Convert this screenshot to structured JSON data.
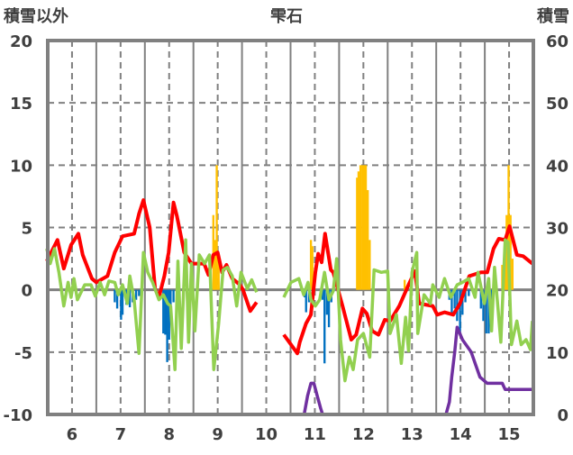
{
  "chart_data": {
    "type": "line",
    "title": "雫石",
    "ylabel_left": "積雪以外",
    "ylabel_right": "積雪",
    "xlim": [
      5.5,
      15.5
    ],
    "ylim_left": [
      -10,
      20
    ],
    "ylim_right": [
      0,
      60
    ],
    "x_ticks": [
      "6",
      "7",
      "8",
      "9",
      "10",
      "11",
      "12",
      "13",
      "14",
      "15"
    ],
    "y_ticks_left": [
      "20",
      "15",
      "10",
      "5",
      "0",
      "-5",
      "-10"
    ],
    "y_ticks_right": [
      "60",
      "50",
      "40",
      "30",
      "20",
      "10",
      "0"
    ],
    "grid": true,
    "colors": {
      "red": "#ff0000",
      "green": "#92d050",
      "blue": "#0070c0",
      "orange": "#ffc000",
      "purple": "#7030a0",
      "grid": "#808080"
    },
    "series": [
      {
        "name": "red-line",
        "axis": "left",
        "color": "#ff0000",
        "points": [
          [
            5.48,
            2.3
          ],
          [
            5.7,
            4.0
          ],
          [
            5.83,
            1.7
          ],
          [
            5.98,
            3.6
          ],
          [
            6.13,
            4.5
          ],
          [
            6.22,
            2.8
          ],
          [
            6.41,
            0.9
          ],
          [
            6.5,
            0.6
          ],
          [
            6.73,
            1.1
          ],
          [
            6.88,
            3.0
          ],
          [
            7.04,
            4.3
          ],
          [
            7.28,
            4.5
          ],
          [
            7.38,
            6.1
          ],
          [
            7.47,
            7.2
          ],
          [
            7.6,
            5.0
          ],
          [
            7.71,
            0.1
          ],
          [
            7.79,
            -0.6
          ],
          [
            7.9,
            1.1
          ],
          [
            7.99,
            3.0
          ],
          [
            8.09,
            7.0
          ],
          [
            8.16,
            5.9
          ],
          [
            8.31,
            3.0
          ],
          [
            8.46,
            2.1
          ],
          [
            8.72,
            2.1
          ],
          [
            8.81,
            1.2
          ],
          [
            8.91,
            2.8
          ],
          [
            9.0,
            3.0
          ],
          [
            9.09,
            1.4
          ],
          [
            9.18,
            2.0
          ],
          [
            9.3,
            0.9
          ],
          [
            9.46,
            0.4
          ],
          [
            9.52,
            0.0
          ],
          [
            9.67,
            -1.7
          ],
          [
            9.8,
            -1.0
          ],
          null,
          [
            10.36,
            -3.6
          ],
          [
            10.49,
            -4.3
          ],
          [
            10.64,
            -5.1
          ],
          [
            10.69,
            -4.2
          ],
          [
            10.82,
            -2.7
          ],
          [
            10.92,
            -2.0
          ],
          [
            11.01,
            1.4
          ],
          [
            11.07,
            2.9
          ],
          [
            11.14,
            2.2
          ],
          [
            11.21,
            4.5
          ],
          [
            11.33,
            1.6
          ],
          [
            11.38,
            1.4
          ],
          [
            11.57,
            -1.3
          ],
          [
            11.75,
            -4.0
          ],
          [
            11.85,
            -3.6
          ],
          [
            11.98,
            -1.5
          ],
          [
            12.07,
            -1.9
          ],
          [
            12.18,
            -3.3
          ],
          [
            12.31,
            -3.6
          ],
          [
            12.44,
            -2.4
          ],
          [
            12.55,
            -2.5
          ],
          [
            12.74,
            -1.3
          ],
          [
            12.93,
            0.4
          ],
          [
            13.06,
            1.5
          ],
          [
            13.15,
            -1.1
          ],
          [
            13.43,
            -1.3
          ],
          [
            13.52,
            -2.0
          ],
          [
            13.67,
            -1.8
          ],
          [
            13.85,
            -2.0
          ],
          [
            13.99,
            -1.1
          ],
          [
            14.18,
            1.1
          ],
          [
            14.42,
            1.4
          ],
          [
            14.55,
            1.4
          ],
          [
            14.68,
            3.3
          ],
          [
            14.79,
            4.1
          ],
          [
            14.92,
            4.0
          ],
          [
            15.01,
            5.1
          ],
          [
            15.16,
            2.8
          ],
          [
            15.29,
            2.7
          ],
          [
            15.48,
            2.1
          ]
        ]
      },
      {
        "name": "green-line",
        "axis": "left",
        "color": "#92d050",
        "points": [
          [
            5.48,
            3.3
          ],
          [
            5.55,
            2.1
          ],
          [
            5.64,
            3.3
          ],
          [
            5.73,
            1.4
          ],
          [
            5.83,
            -1.3
          ],
          [
            5.92,
            0.6
          ],
          [
            5.98,
            -0.6
          ],
          [
            6.04,
            0.9
          ],
          [
            6.11,
            -0.8
          ],
          [
            6.26,
            0.4
          ],
          [
            6.39,
            0.4
          ],
          [
            6.48,
            -0.5
          ],
          [
            6.58,
            0.6
          ],
          [
            6.67,
            -0.4
          ],
          [
            6.76,
            0.7
          ],
          [
            6.88,
            0.6
          ],
          [
            6.95,
            -0.4
          ],
          [
            7.04,
            0.4
          ],
          [
            7.14,
            -1.1
          ],
          [
            7.19,
            1.1
          ],
          [
            7.28,
            -0.8
          ],
          [
            7.38,
            -5.1
          ],
          [
            7.47,
            3.0
          ],
          [
            7.56,
            1.4
          ],
          [
            7.66,
            0.6
          ],
          [
            7.79,
            -0.8
          ],
          [
            7.88,
            -0.4
          ],
          [
            7.97,
            -1.1
          ],
          [
            8.03,
            -1.3
          ],
          [
            8.12,
            -6.4
          ],
          [
            8.18,
            2.3
          ],
          [
            8.25,
            -4.7
          ],
          [
            8.34,
            4.0
          ],
          [
            8.4,
            -4.2
          ],
          [
            8.46,
            2.1
          ],
          [
            8.53,
            -3.3
          ],
          [
            8.62,
            2.8
          ],
          [
            8.73,
            2.1
          ],
          [
            8.83,
            2.8
          ],
          [
            8.92,
            -6.4
          ],
          [
            9.02,
            -2.7
          ],
          [
            9.11,
            1.6
          ],
          [
            9.2,
            1.8
          ],
          [
            9.3,
            1.1
          ],
          [
            9.39,
            -1.3
          ],
          [
            9.48,
            1.4
          ],
          [
            9.61,
            0.1
          ],
          [
            9.7,
            0.8
          ],
          [
            9.8,
            -0.2
          ],
          null,
          [
            10.36,
            -0.6
          ],
          [
            10.51,
            0.6
          ],
          [
            10.67,
            0.9
          ],
          [
            10.77,
            -0.4
          ],
          [
            10.86,
            0.6
          ],
          [
            10.92,
            -0.8
          ],
          [
            11.01,
            -1.3
          ],
          [
            11.1,
            -0.8
          ],
          [
            11.2,
            1.4
          ],
          [
            11.29,
            -0.8
          ],
          [
            11.38,
            -0.1
          ],
          [
            11.45,
            2.5
          ],
          [
            11.53,
            -4.0
          ],
          [
            11.62,
            -7.3
          ],
          [
            11.71,
            -5.4
          ],
          [
            11.79,
            -6.4
          ],
          [
            11.88,
            -4.0
          ],
          [
            12.0,
            -3.5
          ],
          [
            12.13,
            -5.4
          ],
          [
            12.22,
            1.6
          ],
          [
            12.37,
            1.4
          ],
          [
            12.5,
            1.5
          ],
          [
            12.55,
            -3.5
          ],
          [
            12.68,
            -2.0
          ],
          [
            12.78,
            -5.9
          ],
          [
            12.87,
            -2.2
          ],
          [
            12.93,
            -4.9
          ],
          [
            13.0,
            1.4
          ],
          [
            13.1,
            3.0
          ],
          [
            13.12,
            -3.5
          ],
          [
            13.25,
            -0.4
          ],
          [
            13.38,
            -1.1
          ],
          [
            13.43,
            0.4
          ],
          [
            13.56,
            -0.6
          ],
          [
            13.67,
            0.9
          ],
          [
            13.8,
            -0.6
          ],
          [
            13.93,
            0.4
          ],
          [
            14.04,
            0.6
          ],
          [
            14.17,
            0.9
          ],
          [
            14.3,
            -0.6
          ],
          [
            14.36,
            1.4
          ],
          [
            14.49,
            -1.1
          ],
          [
            14.58,
            0.9
          ],
          [
            14.64,
            -3.3
          ],
          [
            14.7,
            1.8
          ],
          [
            14.83,
            -4.2
          ],
          [
            14.92,
            4.0
          ],
          [
            14.98,
            3.8
          ],
          [
            15.05,
            -4.4
          ],
          [
            15.16,
            -2.5
          ],
          [
            15.25,
            -4.4
          ],
          [
            15.35,
            -4.0
          ],
          [
            15.44,
            -4.8
          ],
          [
            15.48,
            -2.5
          ]
        ]
      },
      {
        "name": "snow-depth-line",
        "axis": "right",
        "color": "#7030a0",
        "points": [
          [
            5.48,
            0
          ],
          [
            9.8,
            0
          ],
          null,
          [
            10.36,
            0
          ],
          [
            10.78,
            0
          ],
          [
            10.85,
            3
          ],
          [
            10.92,
            5
          ],
          [
            10.98,
            5
          ],
          [
            11.05,
            3
          ],
          [
            11.12,
            1
          ],
          [
            11.16,
            0
          ],
          [
            13.7,
            0
          ],
          [
            13.77,
            2
          ],
          [
            13.82,
            6
          ],
          [
            13.88,
            10
          ],
          [
            13.93,
            14
          ],
          [
            14.04,
            12
          ],
          [
            14.22,
            10
          ],
          [
            14.4,
            6
          ],
          [
            14.55,
            5
          ],
          [
            14.86,
            5
          ],
          [
            14.92,
            4
          ],
          [
            15.48,
            4
          ]
        ]
      }
    ],
    "bars": [
      {
        "name": "blue-bars",
        "axis": "left",
        "color": "#0070c0",
        "points": [
          [
            6.88,
            -1.0
          ],
          [
            6.93,
            -1.5
          ],
          [
            7.01,
            -2.4
          ],
          [
            7.04,
            -2.0
          ],
          [
            7.12,
            -1.2
          ],
          [
            7.19,
            -1.4
          ],
          [
            7.25,
            -1.0
          ],
          [
            7.32,
            -0.8
          ],
          [
            7.38,
            -0.5
          ],
          [
            7.81,
            -0.5
          ],
          [
            7.88,
            -3.5
          ],
          [
            7.92,
            -3.6
          ],
          [
            7.96,
            -5.8
          ],
          [
            8.0,
            -4.0
          ],
          [
            8.03,
            -1.5
          ],
          [
            8.09,
            -1.0
          ],
          [
            8.16,
            -0.8
          ],
          [
            10.79,
            -0.6
          ],
          [
            10.82,
            -1.8
          ],
          [
            10.88,
            -1.0
          ],
          [
            11.16,
            -0.8
          ],
          [
            11.2,
            -5.9
          ],
          [
            11.25,
            -2.0
          ],
          [
            11.29,
            -3.0
          ],
          [
            11.34,
            -1.0
          ],
          [
            13.77,
            -0.8
          ],
          [
            13.82,
            -2.0
          ],
          [
            13.88,
            -1.5
          ],
          [
            13.93,
            -2.5
          ],
          [
            13.99,
            -3.5
          ],
          [
            14.04,
            -2.0
          ],
          [
            14.1,
            -1.0
          ],
          [
            14.17,
            -0.5
          ],
          [
            14.42,
            -1.5
          ],
          [
            14.47,
            -2.5
          ],
          [
            14.53,
            -3.5
          ],
          [
            14.58,
            -3.5
          ],
          [
            14.64,
            -1.0
          ]
        ]
      },
      {
        "name": "orange-bars",
        "axis": "left",
        "color": "#ffc000",
        "points": [
          [
            8.91,
            6.0
          ],
          [
            8.94,
            4.0
          ],
          [
            8.98,
            10.0
          ],
          [
            9.02,
            2.5
          ],
          [
            10.92,
            4.0
          ],
          [
            10.95,
            3.5
          ],
          [
            10.99,
            1.0
          ],
          [
            11.87,
            9.0
          ],
          [
            11.9,
            9.5
          ],
          [
            11.94,
            10.0
          ],
          [
            11.98,
            10.0
          ],
          [
            12.01,
            10.0
          ],
          [
            12.05,
            10.0
          ],
          [
            12.09,
            8.0
          ],
          [
            12.13,
            4.0
          ],
          [
            12.85,
            0.8
          ],
          [
            14.86,
            2.0
          ],
          [
            14.92,
            3.5
          ],
          [
            14.95,
            6.0
          ],
          [
            14.99,
            10.0
          ],
          [
            15.03,
            6.0
          ],
          [
            15.07,
            2.5
          ]
        ]
      }
    ]
  }
}
